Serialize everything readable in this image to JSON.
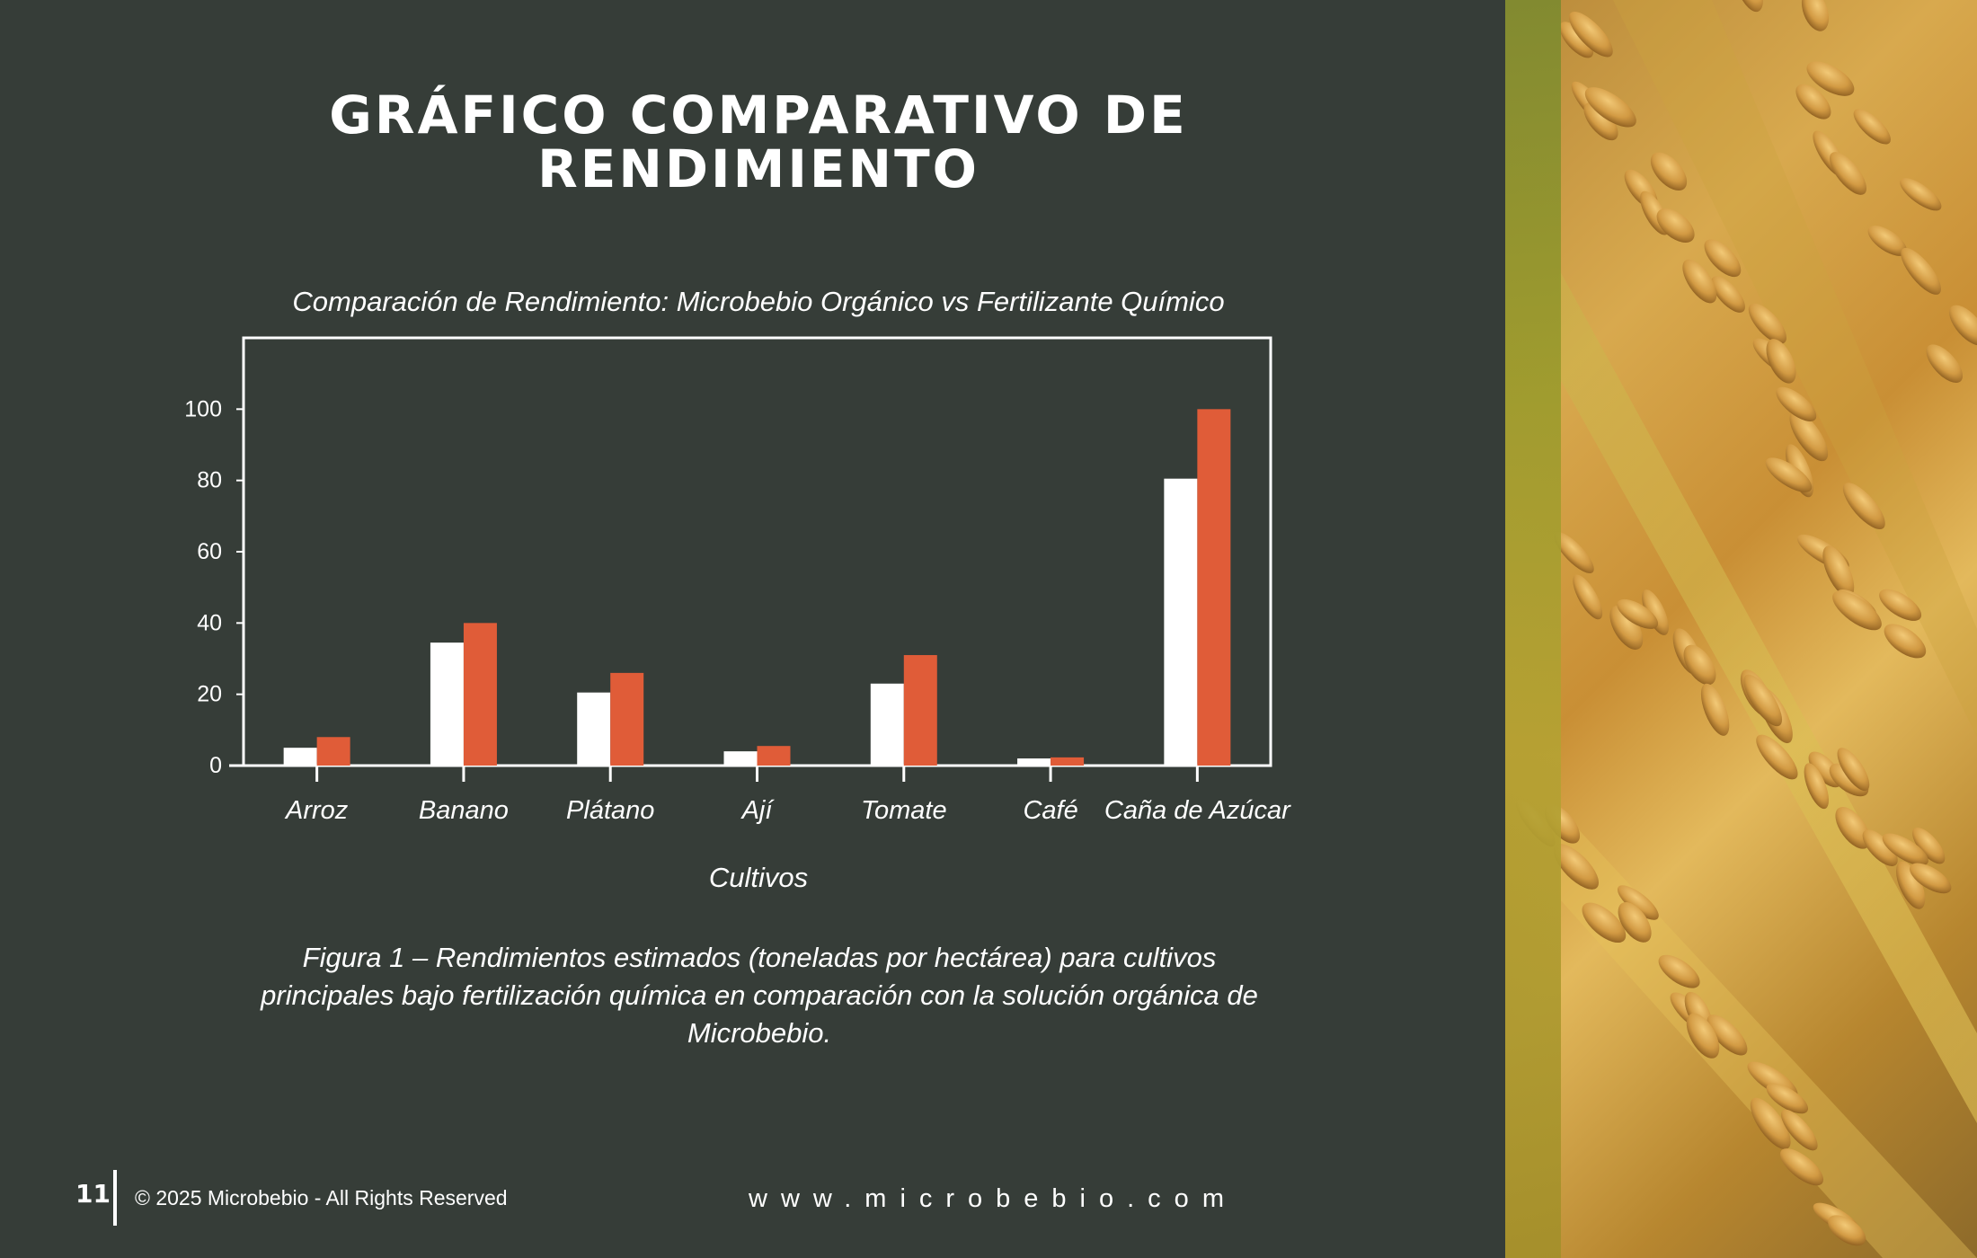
{
  "page": {
    "title_lines": [
      "GRÁFICO COMPARATIVO DE",
      "RENDIMIENTO"
    ],
    "caption": "Figura 1 – Rendimientos estimados (toneladas por hectárea) para cultivos principales bajo fertilización química en comparación con la solución orgánica de Microbebio."
  },
  "footer": {
    "page_number": "11",
    "copyright": "© 2025 Microbebio - All Rights Reserved",
    "website": "www.microbebio.com"
  },
  "colors": {
    "background": "#363d38",
    "series_quimico": "#ffffff",
    "series_organico": "#e05c38"
  },
  "chart_data": {
    "type": "bar",
    "title": "Comparación de Rendimiento: Microbebio Orgánico vs Fertilizante Químico",
    "xlabel": "Cultivos",
    "ylabel": "",
    "categories": [
      "Arroz",
      "Banano",
      "Plátano",
      "Ají",
      "Tomate",
      "Café",
      "Caña de Azúcar"
    ],
    "series": [
      {
        "values": [
          5,
          34.5,
          20.5,
          4,
          23,
          2,
          80.5
        ]
      },
      {
        "values": [
          8,
          40,
          26,
          5.5,
          31,
          2.3,
          100
        ]
      }
    ],
    "yticks": [
      0,
      20,
      40,
      60,
      80,
      100
    ],
    "ylim": [
      0,
      120
    ],
    "grid": false,
    "legend": "none"
  }
}
